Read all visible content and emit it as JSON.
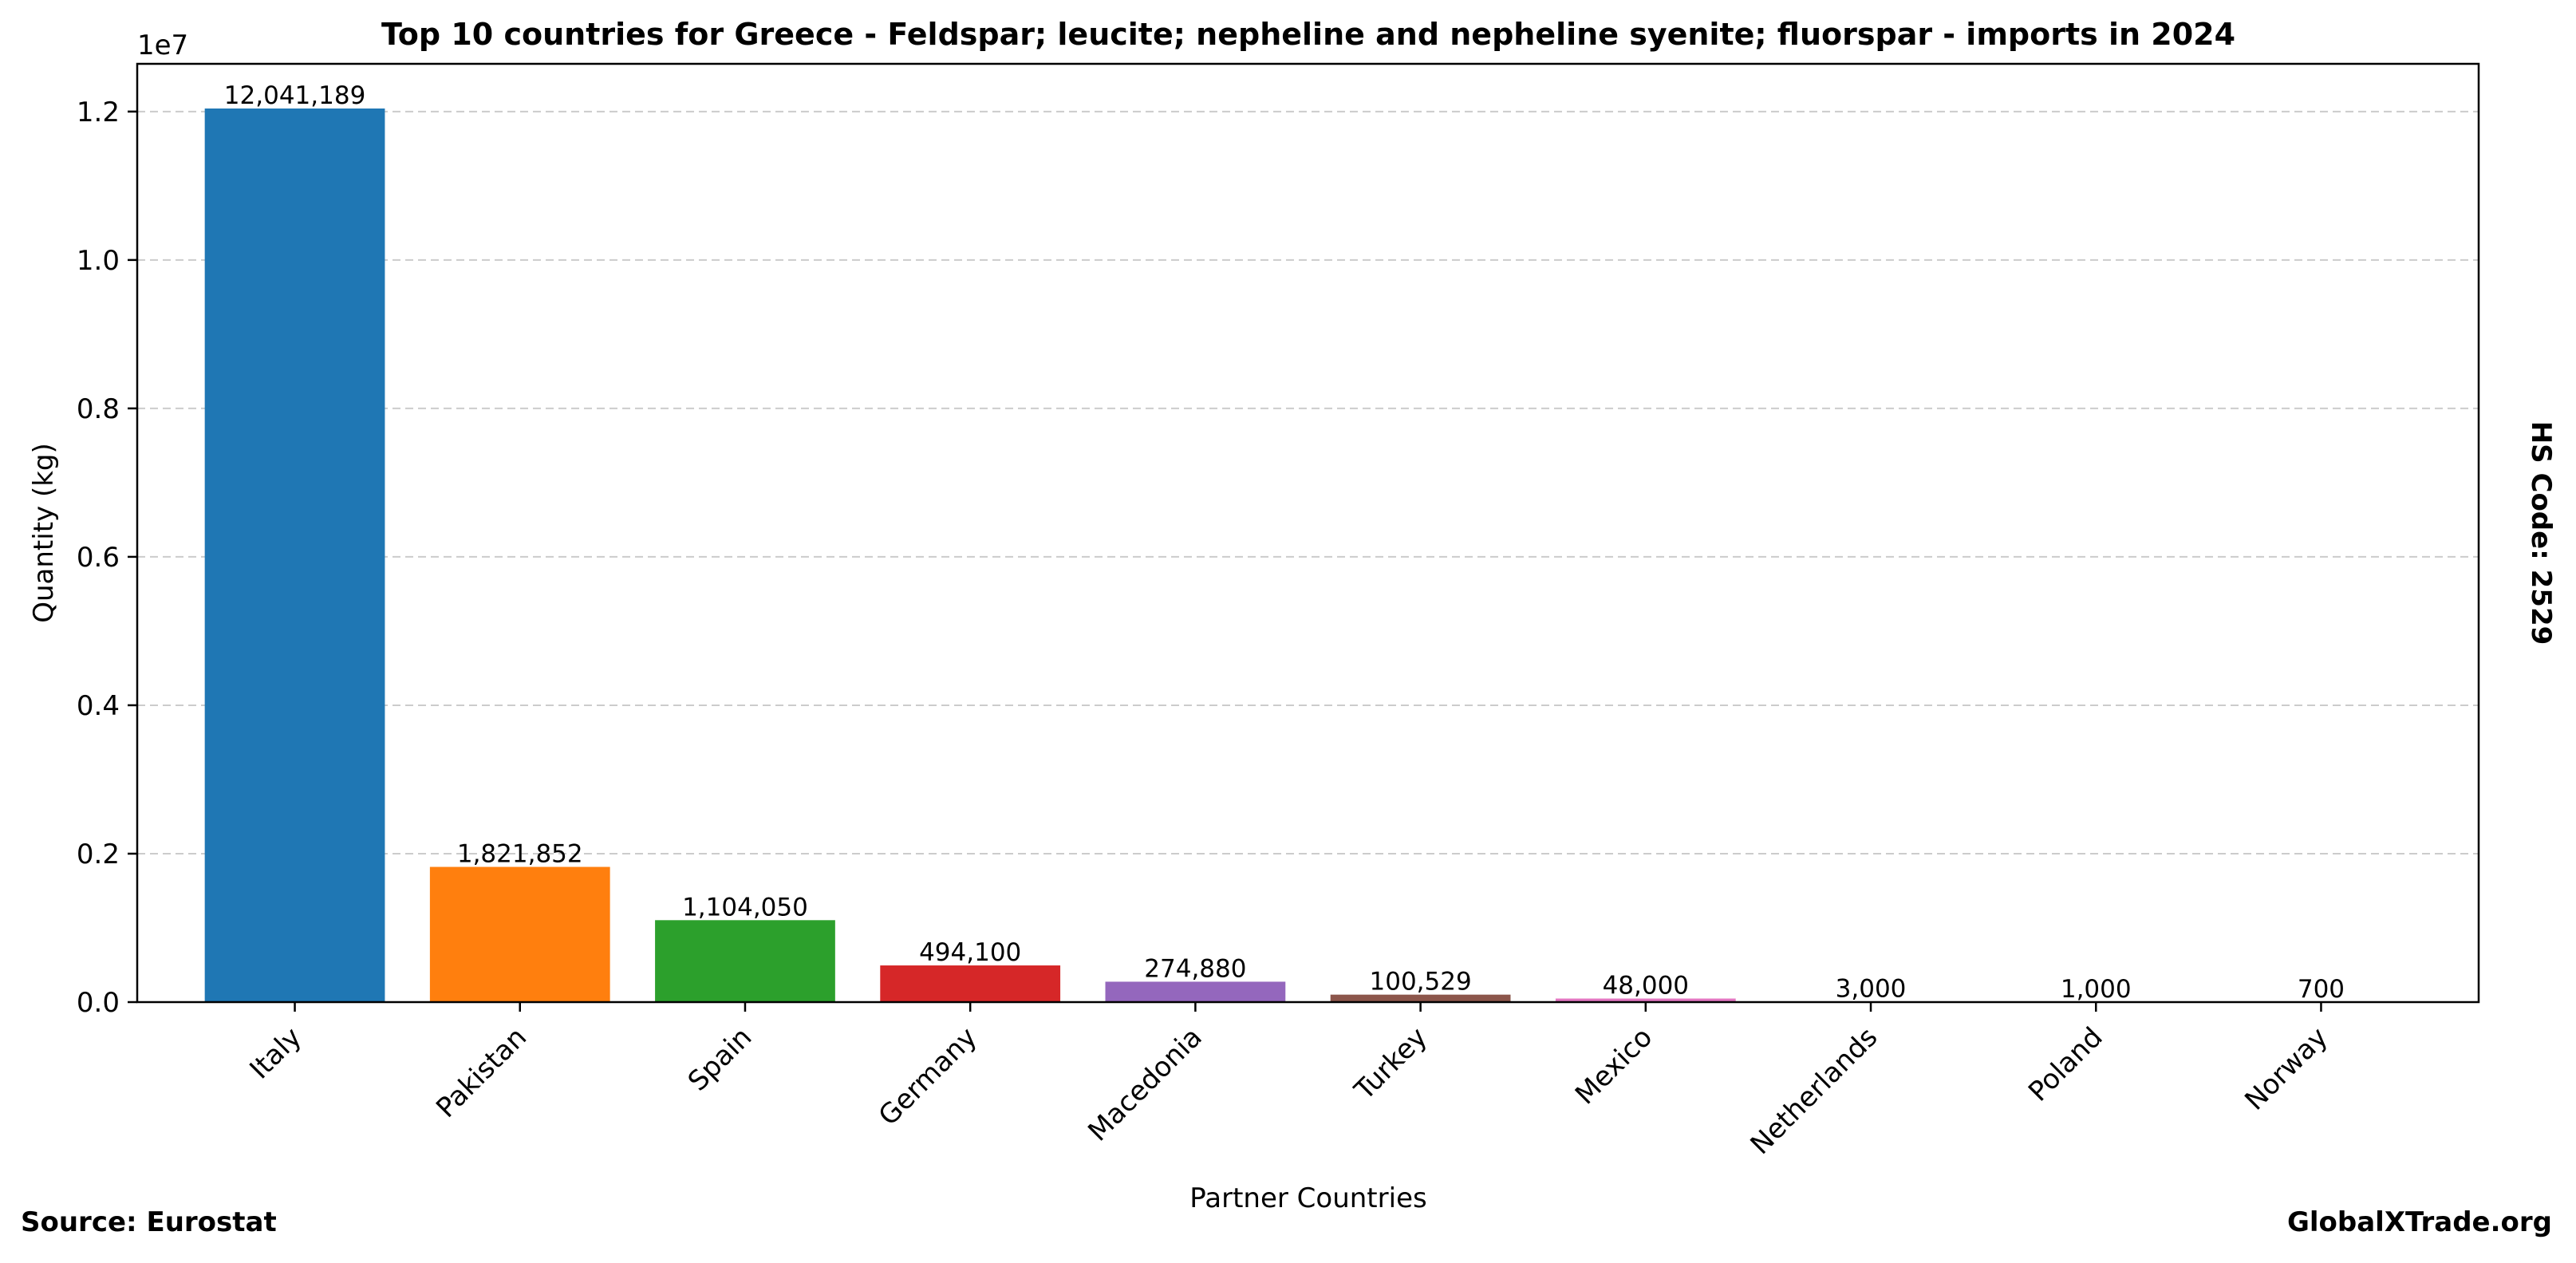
{
  "chart_data": {
    "type": "bar",
    "title": "Top 10 countries for Greece - Feldspar; leucite; nepheline and nepheline syenite; fluorspar - imports in 2024",
    "xlabel": "Partner Countries",
    "ylabel": "Quantity (kg)",
    "y_offset_label": "1e7",
    "side_label": "HS Code: 2529",
    "categories": [
      "Italy",
      "Pakistan",
      "Spain",
      "Germany",
      "Macedonia",
      "Turkey",
      "Mexico",
      "Netherlands",
      "Poland",
      "Norway"
    ],
    "values": [
      12041189,
      1821852,
      1104050,
      494100,
      274880,
      100529,
      48000,
      3000,
      1000,
      700
    ],
    "value_labels": [
      "12,041,189",
      "1,821,852",
      "1,104,050",
      "494,100",
      "274,880",
      "100,529",
      "48,000",
      "3,000",
      "1,000",
      "700"
    ],
    "colors": [
      "#1f77b4",
      "#ff7f0e",
      "#2ca02c",
      "#d62728",
      "#9467bd",
      "#8c564b",
      "#e377c2",
      "#7f7f7f",
      "#bcbd22",
      "#17becf"
    ],
    "ylim": [
      0,
      12643248
    ],
    "yticks": [
      0,
      2000000,
      4000000,
      6000000,
      8000000,
      10000000,
      12000000
    ],
    "ytick_labels": [
      "0.0",
      "0.2",
      "0.4",
      "0.6",
      "0.8",
      "1.0",
      "1.2"
    ],
    "grid": "y-dashed",
    "legend": "none"
  },
  "footer": {
    "source": "Source: Eurostat",
    "brand": "GlobalXTrade.org"
  }
}
